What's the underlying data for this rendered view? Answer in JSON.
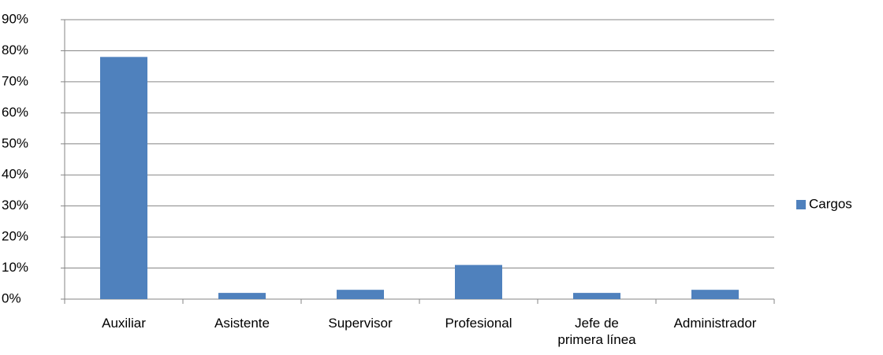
{
  "chart_data": {
    "type": "bar",
    "categories": [
      "Auxiliar",
      "Asistente",
      "Supervisor",
      "Profesional",
      "Jefe de\nprimera línea",
      "Administrador"
    ],
    "series": [
      {
        "name": "Cargos",
        "color": "#4f81bd",
        "values": [
          78,
          2,
          3,
          11,
          2,
          3
        ]
      }
    ],
    "ylim": [
      0,
      90
    ],
    "yticks": [
      {
        "value": 0,
        "label": "0%"
      },
      {
        "value": 10,
        "label": "10%"
      },
      {
        "value": 20,
        "label": "20%"
      },
      {
        "value": 30,
        "label": "30%"
      },
      {
        "value": 40,
        "label": "40%"
      },
      {
        "value": 50,
        "label": "50%"
      },
      {
        "value": 60,
        "label": "60%"
      },
      {
        "value": 70,
        "label": "70%"
      },
      {
        "value": 80,
        "label": "80%"
      },
      {
        "value": 90,
        "label": "90%"
      }
    ],
    "grid": true,
    "legend": "right"
  }
}
